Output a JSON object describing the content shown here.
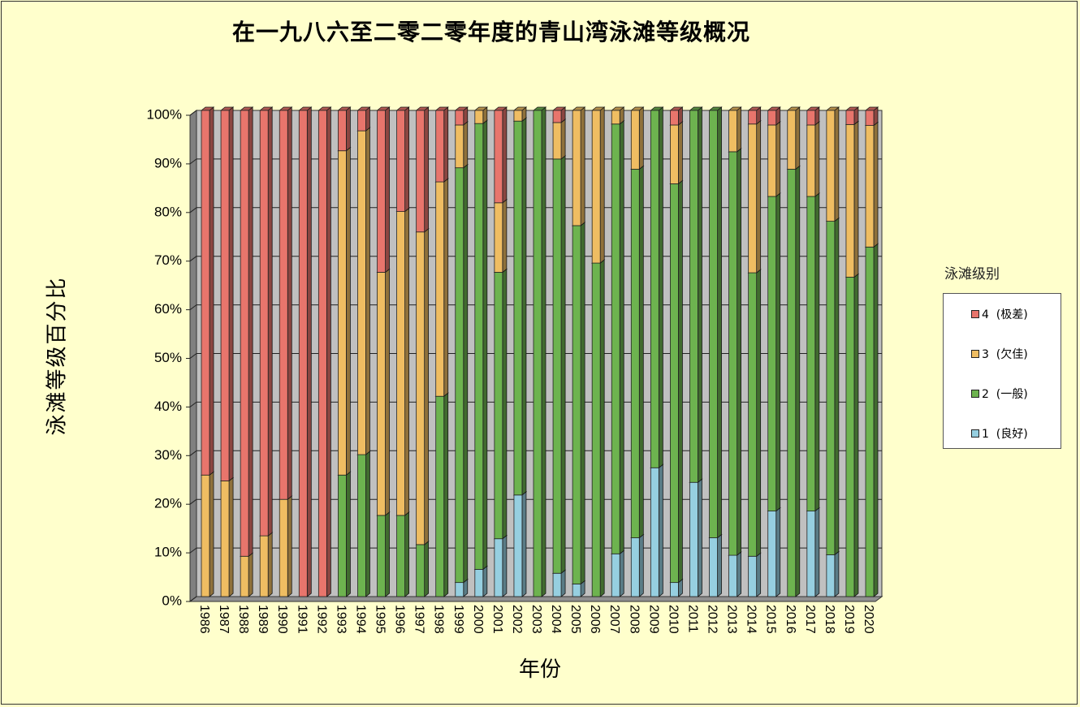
{
  "chart_data": {
    "type": "bar",
    "stacked": "percent",
    "title": "在一九八六至二零二零年度的青山湾泳滩等级概况",
    "xlabel": "年份",
    "ylabel": "泳滩等级百分比",
    "ylim": [
      0,
      100
    ],
    "yticks": [
      "0%",
      "10%",
      "20%",
      "30%",
      "40%",
      "50%",
      "60%",
      "70%",
      "80%",
      "90%",
      "100%"
    ],
    "grid": true,
    "legend_title": "泳滩级别",
    "legend_position": "right",
    "categories": [
      "1986",
      "1987",
      "1988",
      "1989",
      "1990",
      "1991",
      "1992",
      "1993",
      "1994",
      "1995",
      "1996",
      "1997",
      "1998",
      "1999",
      "2000",
      "2001",
      "2002",
      "2003",
      "2004",
      "2005",
      "2006",
      "2007",
      "2008",
      "2009",
      "2010",
      "2011",
      "2012",
      "2013",
      "2014",
      "2015",
      "2016",
      "2017",
      "2018",
      "2019",
      "2020"
    ],
    "series": [
      {
        "name": "1 (良好)",
        "color": "#96cfe0",
        "values": [
          0,
          0,
          0,
          0,
          0,
          0,
          0,
          0,
          0,
          0,
          0,
          0,
          0,
          2.9,
          5.6,
          11.9,
          20.9,
          0,
          4.8,
          2.6,
          0,
          8.8,
          12.1,
          26.5,
          2.9,
          23.5,
          12.1,
          8.5,
          8.3,
          17.6,
          0,
          17.6,
          8.6,
          0,
          0
        ]
      },
      {
        "name": "2 (一般)",
        "color": "#6db34f",
        "values": [
          0,
          0,
          0,
          0,
          0,
          0,
          0,
          25,
          29.2,
          16.7,
          16.7,
          10.7,
          41.2,
          85.3,
          91.7,
          54.8,
          76.9,
          100,
          85.2,
          73.7,
          68.6,
          88.4,
          75.8,
          73.5,
          82.0,
          76.5,
          87.9,
          83.0,
          58.3,
          64.7,
          87.9,
          64.7,
          68.6,
          65.7,
          71.9
        ]
      },
      {
        "name": "3 (欠佳)",
        "color": "#efbd62",
        "values": [
          25,
          23.8,
          8.3,
          12.5,
          20,
          0,
          0,
          66.7,
          66.6,
          50,
          62.5,
          64.3,
          44.1,
          8.8,
          2.7,
          14.3,
          2.2,
          0,
          7.5,
          23.7,
          31.4,
          2.8,
          12.1,
          0,
          12.1,
          0,
          0,
          8.5,
          30.6,
          14.7,
          12.1,
          14.7,
          22.8,
          31.4,
          25.0
        ]
      },
      {
        "name": "4 (极差)",
        "color": "#e8756c",
        "values": [
          75,
          76.2,
          91.7,
          87.5,
          80,
          100,
          100,
          8.3,
          4.2,
          33.3,
          20.8,
          25,
          14.7,
          3.0,
          0,
          19.0,
          0,
          0,
          2.5,
          0,
          0,
          0,
          0,
          0,
          3.0,
          0,
          0,
          0,
          2.8,
          3.0,
          0,
          3.0,
          0,
          2.9,
          3.1
        ]
      }
    ]
  }
}
